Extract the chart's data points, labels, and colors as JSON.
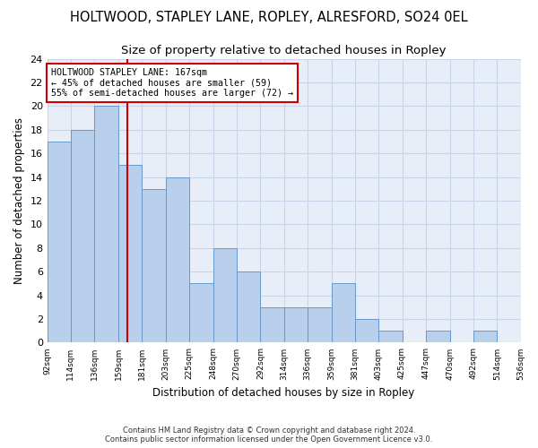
{
  "title": "HOLTWOOD, STAPLEY LANE, ROPLEY, ALRESFORD, SO24 0EL",
  "subtitle": "Size of property relative to detached houses in Ropley",
  "xlabel": "Distribution of detached houses by size in Ropley",
  "ylabel": "Number of detached properties",
  "footer_line1": "Contains HM Land Registry data © Crown copyright and database right 2024.",
  "footer_line2": "Contains public sector information licensed under the Open Government Licence v3.0.",
  "bar_edges": [
    92,
    114,
    136,
    159,
    181,
    203,
    225,
    248,
    270,
    292,
    314,
    336,
    359,
    381,
    403,
    425,
    447,
    470,
    492,
    514,
    536
  ],
  "bar_heights": [
    17,
    18,
    20,
    15,
    13,
    14,
    5,
    8,
    6,
    3,
    3,
    3,
    5,
    2,
    1,
    0,
    1,
    0,
    1,
    0
  ],
  "bar_color": "#b8d0eb",
  "bar_edgecolor": "#6699cc",
  "vline_x": 167,
  "vline_color": "#cc0000",
  "annotation_text": "HOLTWOOD STAPLEY LANE: 167sqm\n← 45% of detached houses are smaller (59)\n55% of semi-detached houses are larger (72) →",
  "annotation_box_edgecolor": "#cc0000",
  "annotation_box_facecolor": "#ffffff",
  "ylim": [
    0,
    24
  ],
  "yticks": [
    0,
    2,
    4,
    6,
    8,
    10,
    12,
    14,
    16,
    18,
    20,
    22,
    24
  ],
  "grid_color": "#c8d4e8",
  "bg_color": "#e8eef8",
  "title_fontsize": 10.5,
  "subtitle_fontsize": 9.5,
  "xlabel_fontsize": 8.5,
  "ylabel_fontsize": 8.5,
  "tick_labels": [
    "92sqm",
    "114sqm",
    "136sqm",
    "159sqm",
    "181sqm",
    "203sqm",
    "225sqm",
    "248sqm",
    "270sqm",
    "292sqm",
    "314sqm",
    "336sqm",
    "359sqm",
    "381sqm",
    "403sqm",
    "425sqm",
    "447sqm",
    "470sqm",
    "492sqm",
    "514sqm",
    "536sqm"
  ]
}
